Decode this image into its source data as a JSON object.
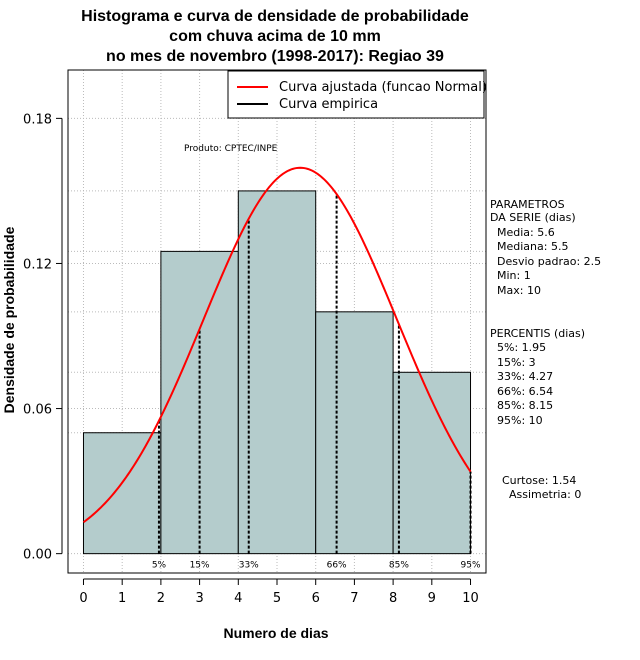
{
  "chart_data": {
    "type": "bar",
    "title_lines": [
      "Histograma e curva de densidade de probabilidade",
      "com chuva acima de 10 mm",
      "no mes de novembro (1998-2017): Regiao 39"
    ],
    "xlabel": "Numero de dias",
    "ylabel": "Densidade de probabilidade",
    "xlim": [
      -0.4,
      10.4
    ],
    "ylim": [
      -0.008,
      0.2
    ],
    "x_ticks": [
      0,
      1,
      2,
      3,
      4,
      5,
      6,
      7,
      8,
      9,
      10
    ],
    "x_tick_labels": [
      "0",
      "1",
      "2",
      "3",
      "4",
      "5",
      "6",
      "7",
      "8",
      "9",
      "10"
    ],
    "y_ticks": [
      0.0,
      0.06,
      0.12,
      0.18
    ],
    "y_tick_labels": [
      "0.00",
      "0.06",
      "0.12",
      "0.18"
    ],
    "bins": [
      {
        "from": 0,
        "to": 2,
        "density": 0.05
      },
      {
        "from": 2,
        "to": 4,
        "density": 0.125
      },
      {
        "from": 4,
        "to": 6,
        "density": 0.15
      },
      {
        "from": 6,
        "to": 8,
        "density": 0.1
      },
      {
        "from": 8,
        "to": 10,
        "density": 0.075
      }
    ],
    "normal_fit": {
      "mean": 5.6,
      "sd": 2.5,
      "from": 0,
      "to": 10
    },
    "percentile_marks": [
      {
        "label": "5%",
        "x": 1.95
      },
      {
        "label": "15%",
        "x": 3.0
      },
      {
        "label": "33%",
        "x": 4.27
      },
      {
        "label": "66%",
        "x": 6.54
      },
      {
        "label": "85%",
        "x": 8.15
      },
      {
        "label": "95%",
        "x": 10.0
      }
    ],
    "grid": true,
    "legend_position": "top-right",
    "legend": [
      {
        "label": "Curva ajustada (funcao Normal)",
        "color": "#ff0000"
      },
      {
        "label": "Curva empirica",
        "color": "#000000"
      }
    ],
    "annotation": "Produto: CPTEC/INPE",
    "colors": {
      "bar_fill": "#b4cccc",
      "fit_line": "#ff0000",
      "grid": "#bbbbbb"
    }
  },
  "side_panel": {
    "parametros": [
      "PARAMETROS",
      "DA SERIE (dias)",
      "Media: 5.6",
      "Mediana: 5.5",
      "Desvio padrao: 2.5",
      "Min: 1",
      "Max: 10"
    ],
    "percentis": [
      "PERCENTIS (dias)",
      "5%: 1.95",
      "15%: 3",
      "33%: 4.27",
      "66%: 6.54",
      "85%: 8.15",
      "95%: 10"
    ],
    "curtose": "Curtose: 1.54",
    "assimetria": "Assimetria: 0"
  }
}
